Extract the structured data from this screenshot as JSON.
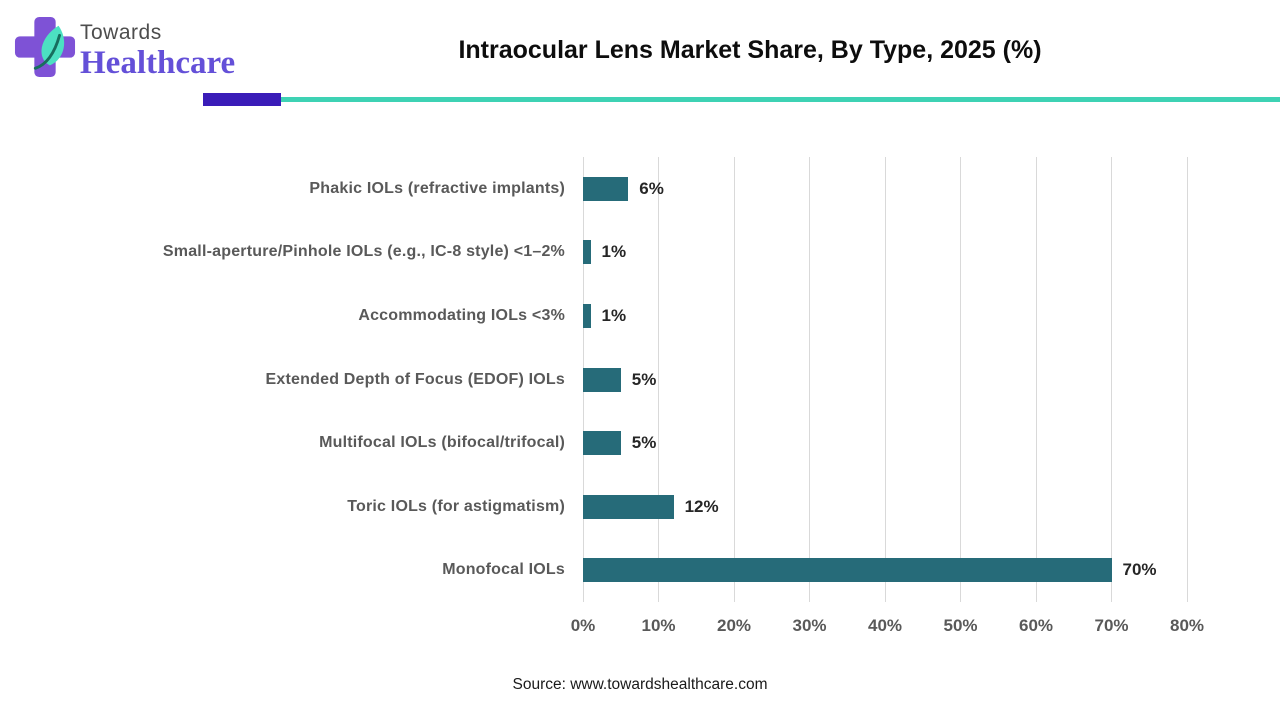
{
  "logo": {
    "towards": "Towards",
    "healthcare": "Healthcare"
  },
  "header": {
    "title": "Intraocular Lens Market Share, By Type, 2025 (%)"
  },
  "chart_data": {
    "type": "bar",
    "orientation": "horizontal",
    "title": "Intraocular Lens Market Share, By Type, 2025 (%)",
    "xlabel": "",
    "ylabel": "",
    "categories": [
      "Phakic IOLs (refractive implants)",
      "Small-aperture/Pinhole IOLs (e.g., IC-8 style) <1–2%",
      "Accommodating IOLs <3%",
      "Extended Depth of Focus (EDOF) IOLs",
      "Multifocal IOLs (bifocal/trifocal)",
      "Toric IOLs (for astigmatism)",
      "Monofocal IOLs"
    ],
    "values": [
      6,
      1,
      1,
      5,
      5,
      12,
      70
    ],
    "value_labels": [
      "6%",
      "1%",
      "1%",
      "5%",
      "5%",
      "12%",
      "70%"
    ],
    "xlim": [
      0,
      80
    ],
    "x_ticks": [
      0,
      10,
      20,
      30,
      40,
      50,
      60,
      70,
      80
    ],
    "x_tick_labels": [
      "0%",
      "10%",
      "20%",
      "30%",
      "40%",
      "50%",
      "60%",
      "70%",
      "80%"
    ],
    "grid": "vertical",
    "legend": "none"
  },
  "footer": {
    "source": "Source: www.towardshealthcare.com"
  },
  "colors": {
    "bar": "#266b79",
    "gridline": "#d9d9d9",
    "category_label": "#595959",
    "value_label": "#262626",
    "tick_label": "#595959",
    "title_text": "#0d0d0d",
    "rule_purple": "#3a1cb8",
    "rule_teal": "#3ed2b4",
    "logo_cross": "#7e52d6",
    "logo_leaf": "#4ce0c2",
    "logo_towards_text": "#4d4d4d",
    "logo_healthcare_text": "#6450d8"
  }
}
